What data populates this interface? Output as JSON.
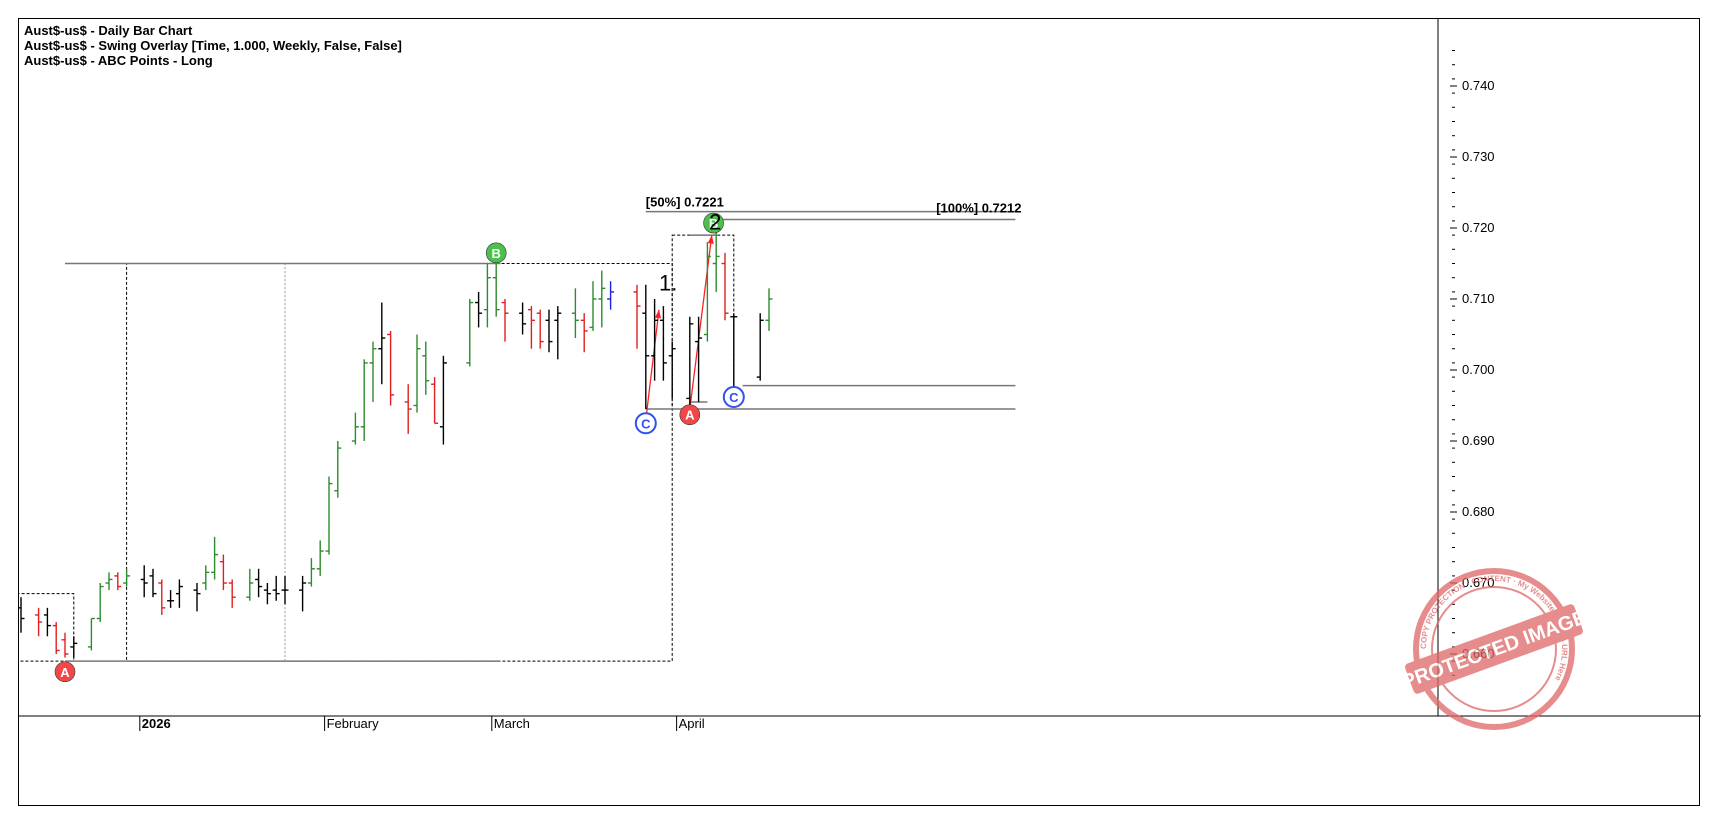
{
  "header": {
    "line1": "Aust$-us$ - Daily Bar Chart",
    "line2": "Aust$-us$ - Swing Overlay [Time, 1.000, Weekly, False, False]",
    "line3": "Aust$-us$ - ABC Points - Long"
  },
  "watermark": {
    "text": "PROTECTED IMAGE",
    "ring_text": "COPY PROTECTION · CONTENT · My Website Name & URL Here",
    "color": "#e06666"
  },
  "colors": {
    "up": "#2e8b2e",
    "down": "#e02020",
    "neutral": "#000000",
    "blue": "#2020e0",
    "point_a": "#f04848",
    "point_b": "#4cc04c",
    "point_c": "#3050f0",
    "arrow": "#ff2020"
  },
  "chart_data": {
    "type": "ohlc",
    "title": "Aust$-us$ - Daily Bar Chart",
    "ylim": [
      0.655,
      0.747
    ],
    "y_ticks": [
      0.66,
      0.67,
      0.68,
      0.69,
      0.7,
      0.71,
      0.72,
      0.73,
      0.74
    ],
    "y_tick_labels": [
      "0.660",
      "0.670",
      "0.680",
      "0.690",
      "0.700",
      "0.710",
      "0.720",
      "0.730",
      "0.740"
    ],
    "x_labels": [
      {
        "label": "2026",
        "bar": 13.5
      },
      {
        "label": "February",
        "bar": 34.5
      },
      {
        "label": "March",
        "bar": 53.5
      },
      {
        "label": "April",
        "bar": 74.5
      }
    ],
    "bars": [
      {
        "i": 0,
        "o": 0.6665,
        "h": 0.668,
        "l": 0.663,
        "c": 0.665,
        "color": "neutral"
      },
      {
        "i": 2,
        "o": 0.6655,
        "h": 0.6665,
        "l": 0.6625,
        "c": 0.6645,
        "color": "down"
      },
      {
        "i": 3,
        "o": 0.6655,
        "h": 0.6665,
        "l": 0.6625,
        "c": 0.664,
        "color": "neutral"
      },
      {
        "i": 4,
        "o": 0.664,
        "h": 0.6645,
        "l": 0.66,
        "c": 0.6605,
        "color": "down"
      },
      {
        "i": 5,
        "o": 0.662,
        "h": 0.663,
        "l": 0.6595,
        "c": 0.66,
        "color": "down"
      },
      {
        "i": 6,
        "o": 0.661,
        "h": 0.6625,
        "l": 0.6595,
        "c": 0.6615,
        "color": "neutral"
      },
      {
        "i": 8,
        "o": 0.661,
        "h": 0.665,
        "l": 0.6605,
        "c": 0.665,
        "color": "up"
      },
      {
        "i": 9,
        "o": 0.665,
        "h": 0.67,
        "l": 0.6645,
        "c": 0.6695,
        "color": "up"
      },
      {
        "i": 10,
        "o": 0.67,
        "h": 0.6715,
        "l": 0.669,
        "c": 0.6705,
        "color": "up"
      },
      {
        "i": 11,
        "o": 0.671,
        "h": 0.6715,
        "l": 0.669,
        "c": 0.6695,
        "color": "down"
      },
      {
        "i": 12,
        "o": 0.67,
        "h": 0.672,
        "l": 0.6695,
        "c": 0.671,
        "color": "up"
      },
      {
        "i": 14,
        "o": 0.6705,
        "h": 0.6725,
        "l": 0.668,
        "c": 0.67,
        "color": "neutral"
      },
      {
        "i": 15,
        "o": 0.671,
        "h": 0.672,
        "l": 0.668,
        "c": 0.6685,
        "color": "neutral"
      },
      {
        "i": 16,
        "o": 0.67,
        "h": 0.6705,
        "l": 0.6655,
        "c": 0.6665,
        "color": "down"
      },
      {
        "i": 17,
        "o": 0.6675,
        "h": 0.669,
        "l": 0.6665,
        "c": 0.6675,
        "color": "neutral"
      },
      {
        "i": 18,
        "o": 0.6685,
        "h": 0.6705,
        "l": 0.6665,
        "c": 0.6695,
        "color": "neutral"
      },
      {
        "i": 20,
        "o": 0.669,
        "h": 0.67,
        "l": 0.666,
        "c": 0.6685,
        "color": "neutral"
      },
      {
        "i": 21,
        "o": 0.67,
        "h": 0.6725,
        "l": 0.669,
        "c": 0.6715,
        "color": "up"
      },
      {
        "i": 22,
        "o": 0.6715,
        "h": 0.6765,
        "l": 0.6705,
        "c": 0.674,
        "color": "up"
      },
      {
        "i": 23,
        "o": 0.673,
        "h": 0.674,
        "l": 0.669,
        "c": 0.67,
        "color": "down"
      },
      {
        "i": 24,
        "o": 0.67,
        "h": 0.6705,
        "l": 0.6665,
        "c": 0.668,
        "color": "down"
      },
      {
        "i": 26,
        "o": 0.668,
        "h": 0.672,
        "l": 0.6675,
        "c": 0.67,
        "color": "up"
      },
      {
        "i": 27,
        "o": 0.6705,
        "h": 0.672,
        "l": 0.668,
        "c": 0.6695,
        "color": "neutral"
      },
      {
        "i": 28,
        "o": 0.669,
        "h": 0.67,
        "l": 0.667,
        "c": 0.6685,
        "color": "neutral"
      },
      {
        "i": 29,
        "o": 0.669,
        "h": 0.671,
        "l": 0.6675,
        "c": 0.6685,
        "color": "neutral"
      },
      {
        "i": 30,
        "o": 0.669,
        "h": 0.671,
        "l": 0.667,
        "c": 0.669,
        "color": "neutral"
      },
      {
        "i": 32,
        "o": 0.669,
        "h": 0.671,
        "l": 0.666,
        "c": 0.67,
        "color": "neutral"
      },
      {
        "i": 33,
        "o": 0.67,
        "h": 0.6735,
        "l": 0.6695,
        "c": 0.672,
        "color": "up"
      },
      {
        "i": 34,
        "o": 0.672,
        "h": 0.676,
        "l": 0.671,
        "c": 0.6745,
        "color": "up"
      },
      {
        "i": 35,
        "o": 0.6745,
        "h": 0.685,
        "l": 0.674,
        "c": 0.684,
        "color": "up"
      },
      {
        "i": 36,
        "o": 0.683,
        "h": 0.69,
        "l": 0.682,
        "c": 0.689,
        "color": "up"
      },
      {
        "i": 38,
        "o": 0.69,
        "h": 0.694,
        "l": 0.6895,
        "c": 0.692,
        "color": "up"
      },
      {
        "i": 39,
        "o": 0.692,
        "h": 0.7015,
        "l": 0.69,
        "c": 0.701,
        "color": "up"
      },
      {
        "i": 40,
        "o": 0.701,
        "h": 0.704,
        "l": 0.6955,
        "c": 0.703,
        "color": "up"
      },
      {
        "i": 41,
        "o": 0.703,
        "h": 0.7095,
        "l": 0.698,
        "c": 0.7045,
        "color": "neutral"
      },
      {
        "i": 42,
        "o": 0.705,
        "h": 0.7055,
        "l": 0.695,
        "c": 0.6965,
        "color": "down"
      },
      {
        "i": 44,
        "o": 0.6955,
        "h": 0.698,
        "l": 0.691,
        "c": 0.6945,
        "color": "down"
      },
      {
        "i": 45,
        "o": 0.695,
        "h": 0.705,
        "l": 0.694,
        "c": 0.703,
        "color": "up"
      },
      {
        "i": 46,
        "o": 0.702,
        "h": 0.704,
        "l": 0.6965,
        "c": 0.6985,
        "color": "up"
      },
      {
        "i": 47,
        "o": 0.698,
        "h": 0.699,
        "l": 0.6925,
        "c": 0.6925,
        "color": "down"
      },
      {
        "i": 48,
        "o": 0.692,
        "h": 0.702,
        "l": 0.6895,
        "c": 0.701,
        "color": "neutral"
      },
      {
        "i": 51,
        "o": 0.701,
        "h": 0.71,
        "l": 0.7005,
        "c": 0.7095,
        "color": "up"
      },
      {
        "i": 52,
        "o": 0.7095,
        "h": 0.711,
        "l": 0.706,
        "c": 0.708,
        "color": "neutral"
      },
      {
        "i": 53,
        "o": 0.7085,
        "h": 0.715,
        "l": 0.706,
        "c": 0.713,
        "color": "up"
      },
      {
        "i": 54,
        "o": 0.713,
        "h": 0.715,
        "l": 0.7075,
        "c": 0.7085,
        "color": "up"
      },
      {
        "i": 55,
        "o": 0.7095,
        "h": 0.71,
        "l": 0.704,
        "c": 0.708,
        "color": "down"
      },
      {
        "i": 57,
        "o": 0.708,
        "h": 0.7095,
        "l": 0.705,
        "c": 0.7065,
        "color": "neutral"
      },
      {
        "i": 58,
        "o": 0.7085,
        "h": 0.709,
        "l": 0.703,
        "c": 0.707,
        "color": "down"
      },
      {
        "i": 59,
        "o": 0.708,
        "h": 0.7085,
        "l": 0.703,
        "c": 0.704,
        "color": "down"
      },
      {
        "i": 60,
        "o": 0.707,
        "h": 0.7085,
        "l": 0.7025,
        "c": 0.704,
        "color": "neutral"
      },
      {
        "i": 61,
        "o": 0.707,
        "h": 0.709,
        "l": 0.7015,
        "c": 0.708,
        "color": "neutral"
      },
      {
        "i": 63,
        "o": 0.708,
        "h": 0.7115,
        "l": 0.7045,
        "c": 0.707,
        "color": "up"
      },
      {
        "i": 64,
        "o": 0.707,
        "h": 0.708,
        "l": 0.7025,
        "c": 0.7055,
        "color": "down"
      },
      {
        "i": 65,
        "o": 0.706,
        "h": 0.7125,
        "l": 0.7055,
        "c": 0.71,
        "color": "up"
      },
      {
        "i": 66,
        "o": 0.71,
        "h": 0.714,
        "l": 0.706,
        "c": 0.7115,
        "color": "up"
      },
      {
        "i": 67,
        "o": 0.71,
        "h": 0.7125,
        "l": 0.7085,
        "c": 0.711,
        "color": "blue"
      },
      {
        "i": 70,
        "o": 0.711,
        "h": 0.712,
        "l": 0.703,
        "c": 0.709,
        "color": "down"
      },
      {
        "i": 71,
        "o": 0.708,
        "h": 0.712,
        "l": 0.6945,
        "c": 0.702,
        "color": "neutral"
      },
      {
        "i": 72,
        "o": 0.702,
        "h": 0.71,
        "l": 0.6985,
        "c": 0.707,
        "color": "neutral"
      },
      {
        "i": 73,
        "o": 0.707,
        "h": 0.709,
        "l": 0.6985,
        "c": 0.701,
        "color": "neutral"
      },
      {
        "i": 74,
        "o": 0.702,
        "h": 0.704,
        "l": 0.696,
        "c": 0.703,
        "color": "neutral"
      },
      {
        "i": 76,
        "o": 0.696,
        "h": 0.7075,
        "l": 0.6945,
        "c": 0.7065,
        "color": "neutral"
      },
      {
        "i": 77,
        "o": 0.704,
        "h": 0.7075,
        "l": 0.6955,
        "c": 0.7045,
        "color": "neutral"
      },
      {
        "i": 78,
        "o": 0.705,
        "h": 0.718,
        "l": 0.704,
        "c": 0.716,
        "color": "up"
      },
      {
        "i": 79,
        "o": 0.715,
        "h": 0.72,
        "l": 0.711,
        "c": 0.716,
        "color": "up"
      },
      {
        "i": 80,
        "o": 0.715,
        "h": 0.7165,
        "l": 0.707,
        "c": 0.708,
        "color": "down"
      },
      {
        "i": 81,
        "o": 0.7075,
        "h": 0.708,
        "l": 0.697,
        "c": 0.7075,
        "color": "neutral"
      },
      {
        "i": 84,
        "o": 0.699,
        "h": 0.708,
        "l": 0.6985,
        "c": 0.707,
        "color": "neutral"
      },
      {
        "i": 85,
        "o": 0.707,
        "h": 0.7115,
        "l": 0.7055,
        "c": 0.71,
        "color": "up"
      }
    ],
    "abc_points": [
      {
        "label": "A",
        "bar": 5,
        "price": 0.6575,
        "type": "A"
      },
      {
        "label": "B",
        "bar": 54,
        "price": 0.7165,
        "type": "B"
      },
      {
        "label": "C",
        "bar": 71,
        "price": 0.6925,
        "type": "C"
      },
      {
        "label": "A",
        "bar": 76,
        "price": 0.6937,
        "type": "A"
      },
      {
        "label": "B",
        "bar": 78.7,
        "price": 0.7207,
        "type": "B"
      },
      {
        "label": "C",
        "bar": 81,
        "price": 0.6962,
        "type": "C"
      }
    ],
    "annotations": [
      {
        "text": "[50%] 0.7221",
        "bar": 71,
        "price": 0.723
      },
      {
        "text": "[100%] 0.7212",
        "bar": 104,
        "price": 0.7222
      },
      {
        "text": "1.",
        "bar": 72.5,
        "price": 0.7112
      },
      {
        "text": "2",
        "bar": 78.2,
        "price": 0.7198
      }
    ],
    "swing_lines": [
      {
        "x1": 5,
        "x2": 54.5,
        "y": 0.715,
        "style": "solid"
      },
      {
        "x1": 5,
        "x2": 54.5,
        "y": 0.659,
        "style": "solid"
      },
      {
        "x1": 71,
        "x2": 113,
        "y": 0.7223,
        "style": "solid"
      },
      {
        "x1": 79.5,
        "x2": 113,
        "y": 0.7212,
        "style": "solid"
      },
      {
        "x1": 71,
        "x2": 113,
        "y": 0.6945,
        "style": "solid"
      },
      {
        "x1": 82,
        "x2": 113,
        "y": 0.6978,
        "style": "solid"
      },
      {
        "x1": 76,
        "x2": 79,
        "y": 0.719,
        "style": "solid"
      },
      {
        "x1": 76,
        "x2": 78,
        "y": 0.6955,
        "style": "solid"
      }
    ],
    "swing_boxes": [
      {
        "x1": -0.5,
        "x2": 6,
        "y1": 0.659,
        "y2": 0.6685
      },
      {
        "x1": 12,
        "x2": 74,
        "y1": 0.659,
        "y2": 0.715
      },
      {
        "x1": 74,
        "x2": 81,
        "y1": 0.6945,
        "y2": 0.719
      }
    ],
    "dotted_lines": [
      {
        "x": 30,
        "y1": 0.659,
        "y2": 0.715
      }
    ],
    "arrows": [
      {
        "x1": 71,
        "y1": 0.693,
        "x2": 72.5,
        "y2": 0.7085
      },
      {
        "x1": 76,
        "y1": 0.6945,
        "x2": 78.5,
        "y2": 0.719
      }
    ]
  }
}
